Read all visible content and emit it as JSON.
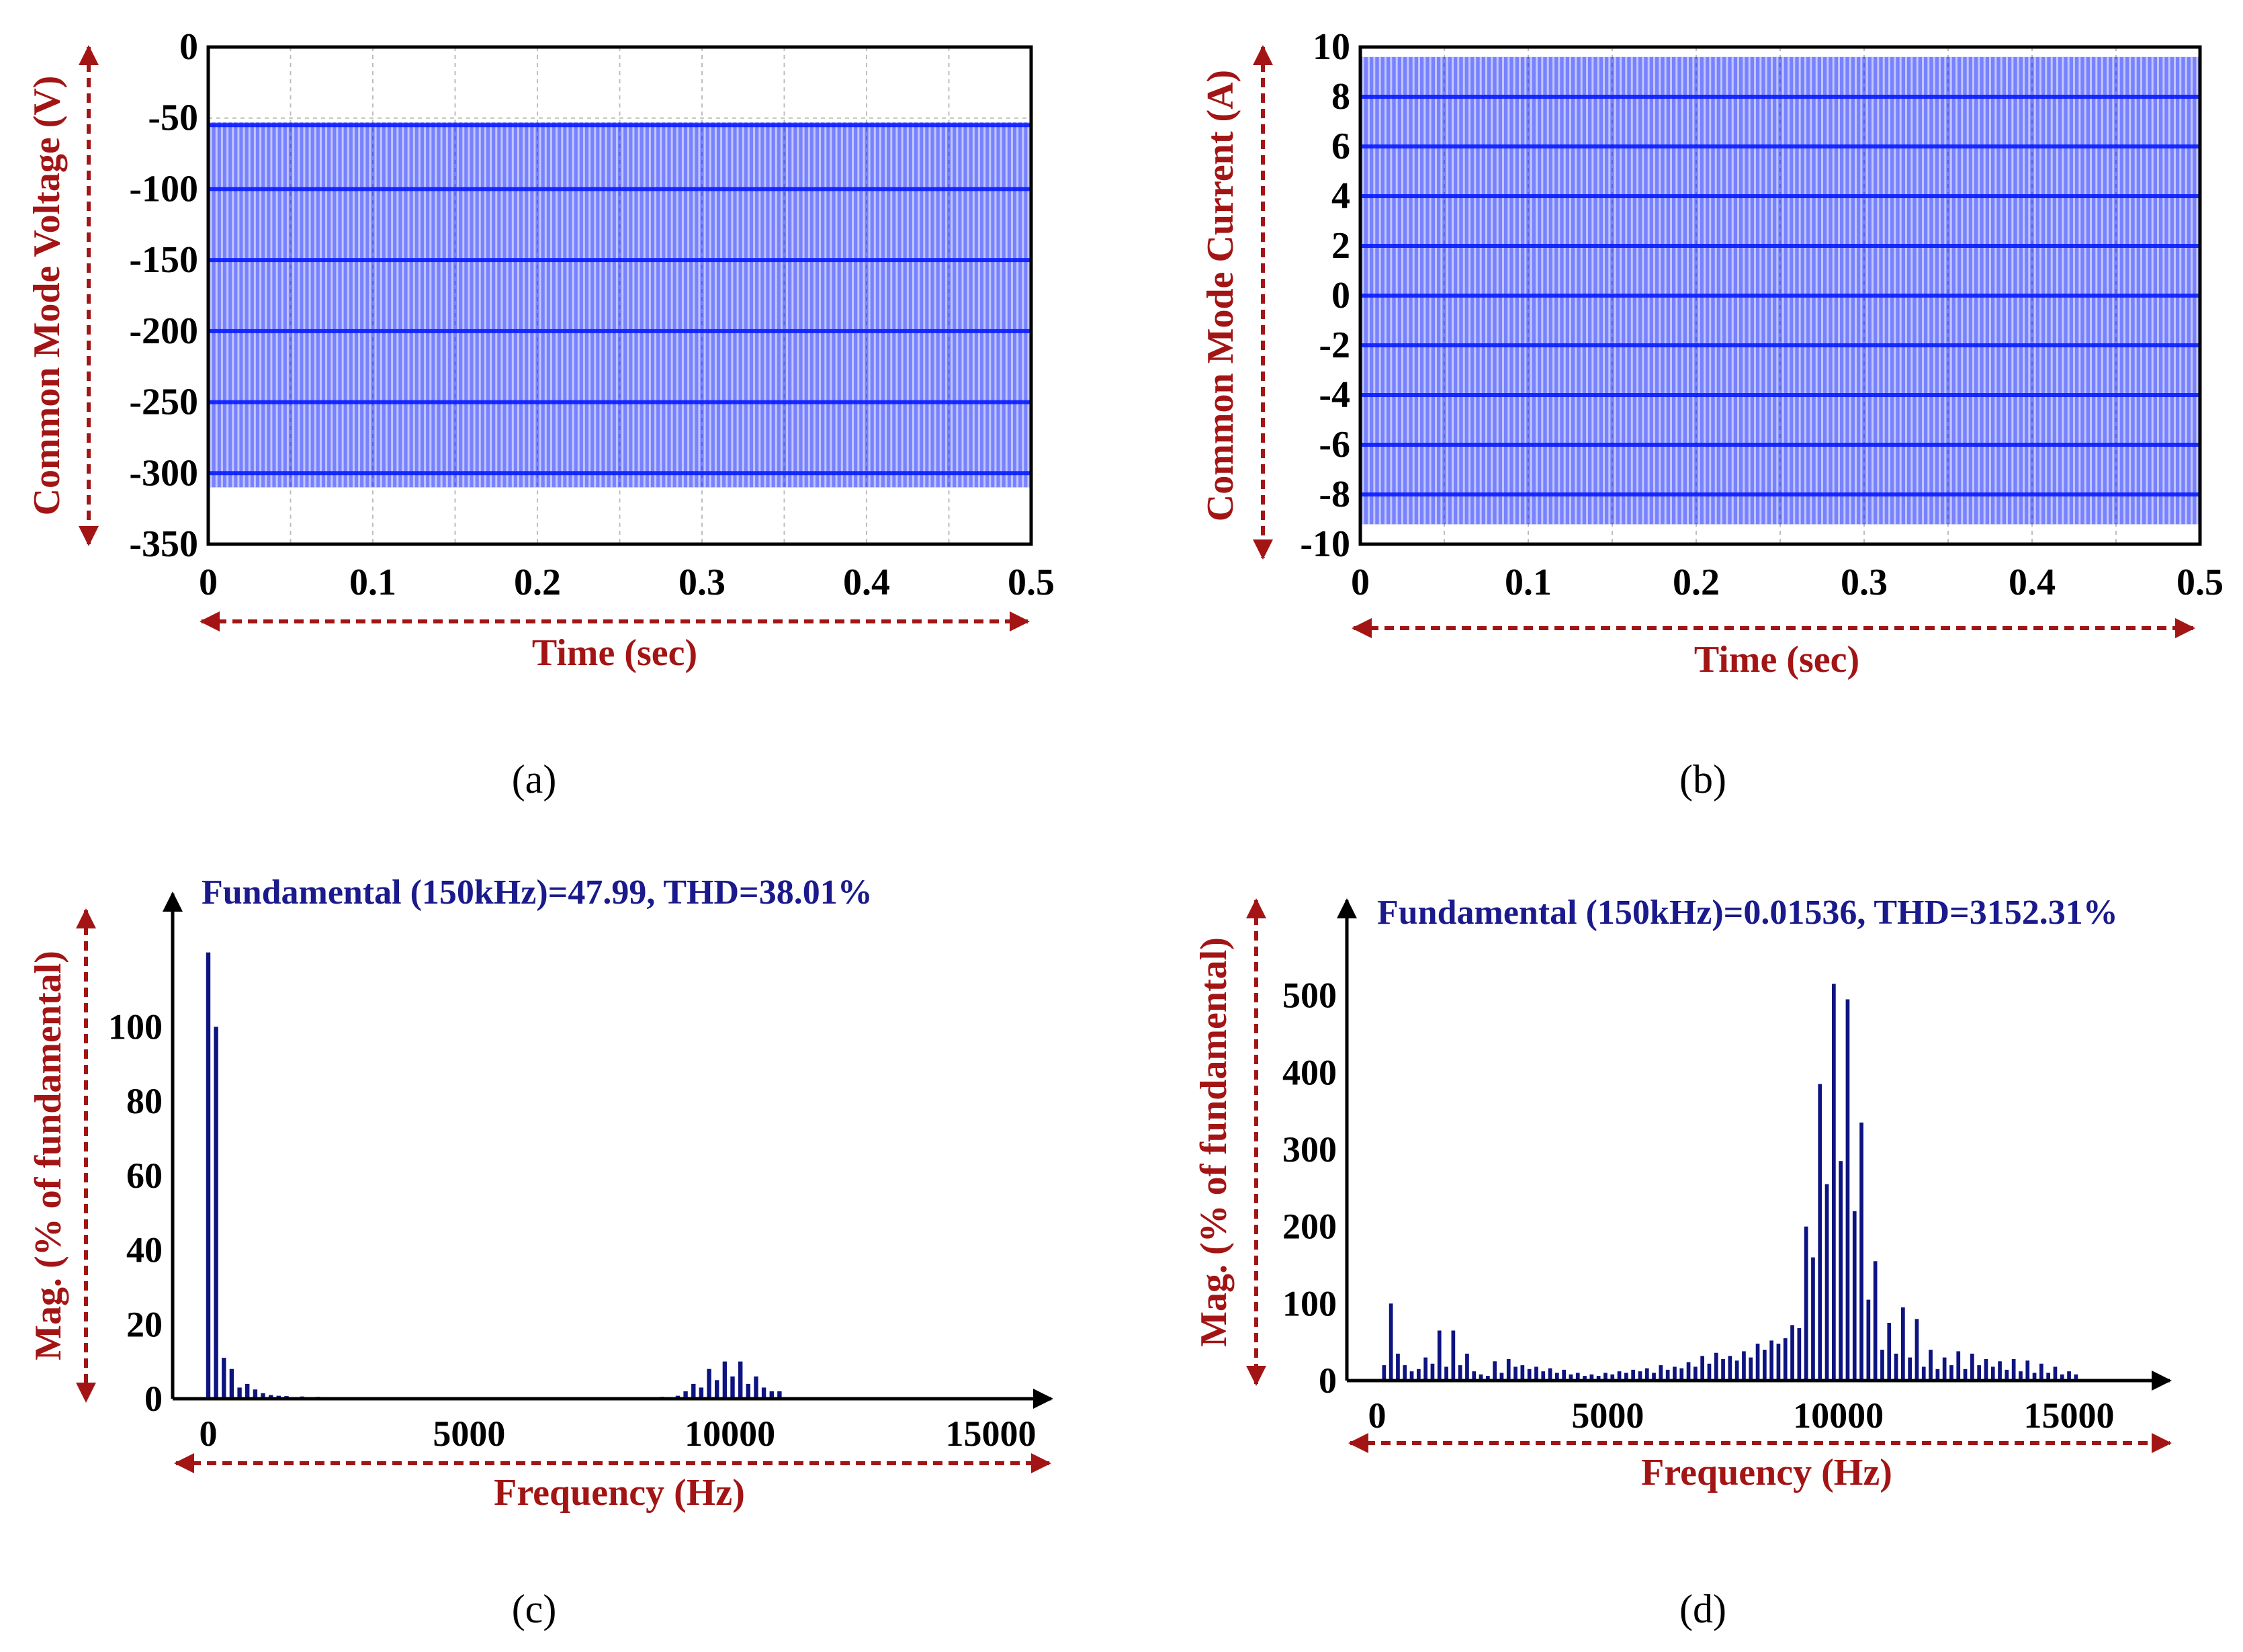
{
  "colors": {
    "waveform": "#0a1cff",
    "bar": "#0d1380",
    "axis_label": "#a31515",
    "title": "#1a1a8c",
    "arrow": "#a31515",
    "grid": "#bdbdbd"
  },
  "chart_data": [
    {
      "id": "a",
      "type": "line",
      "caption": "(a)",
      "title": "",
      "xlabel": "Time (sec)",
      "ylabel": "Common Mode Voltage (V)",
      "xlim": [
        0,
        0.5
      ],
      "ylim": [
        -350,
        0
      ],
      "xticks": [
        0,
        0.1,
        0.2,
        0.3,
        0.4,
        0.5
      ],
      "xtick_labels": [
        "0",
        "0.1",
        "0.2",
        "0.3",
        "0.4",
        "0.5"
      ],
      "yticks": [
        0,
        -50,
        -100,
        -150,
        -200,
        -250,
        -300,
        -350
      ],
      "ytick_labels": [
        "0",
        "-50",
        "-100",
        "-150",
        "-200",
        "-250",
        "-300",
        "-350"
      ],
      "grid": true,
      "signal": {
        "cycles": 75,
        "max": -53,
        "min": -310,
        "bands": [
          -55,
          -100,
          -150,
          -200,
          -250,
          -300
        ]
      }
    },
    {
      "id": "b",
      "type": "line",
      "caption": "(b)",
      "title": "",
      "xlabel": "Time (sec)",
      "ylabel": "Common Mode Current (A)",
      "xlim": [
        0,
        0.5
      ],
      "ylim": [
        -10,
        10
      ],
      "xticks": [
        0,
        0.1,
        0.2,
        0.3,
        0.4,
        0.5
      ],
      "xtick_labels": [
        "0",
        "0.1",
        "0.2",
        "0.3",
        "0.4",
        "0.5"
      ],
      "yticks": [
        10,
        8,
        6,
        4,
        2,
        0,
        -2,
        -4,
        -6,
        -8,
        -10
      ],
      "ytick_labels": [
        "10",
        "8",
        "6",
        "4",
        "2",
        "0",
        "-2",
        "-4",
        "-6",
        "-8",
        "-10"
      ],
      "grid": true,
      "signal": {
        "cycles": 75,
        "max": 9.6,
        "min": -9.2,
        "bands": [
          8,
          6,
          4,
          2,
          0,
          -2,
          -4,
          -6,
          -8
        ]
      }
    },
    {
      "id": "c",
      "type": "bar",
      "caption": "(c)",
      "title": "Fundamental (150kHz)=47.99, THD=38.01%",
      "xlabel": "Frequency (Hz)",
      "ylabel": "Mag. (% of fundamental)",
      "xlim": [
        -500,
        17000
      ],
      "ylim": [
        0,
        125
      ],
      "xticks": [
        0,
        5000,
        10000,
        15000
      ],
      "xtick_labels": [
        "0",
        "5000",
        "10000",
        "15000"
      ],
      "yticks": [
        0,
        20,
        40,
        60,
        80,
        100
      ],
      "ytick_labels": [
        "0",
        "20",
        "40",
        "60",
        "80",
        "100"
      ],
      "grid": false,
      "x": [
        0,
        150,
        300,
        450,
        600,
        750,
        900,
        1050,
        1200,
        1350,
        1500,
        1800,
        2100,
        2400,
        3000,
        3600,
        4200,
        4800,
        6000,
        7200,
        7500,
        8100,
        8400,
        8700,
        9000,
        9150,
        9300,
        9450,
        9600,
        9750,
        9900,
        10050,
        10200,
        10350,
        10500,
        10650,
        10800,
        10950,
        12000,
        13200
      ],
      "values": [
        120,
        100,
        11,
        8,
        3,
        4,
        2.5,
        1.5,
        1,
        0.8,
        0.7,
        0.6,
        0.5,
        0.4,
        0.4,
        0.4,
        0.3,
        0.3,
        0.3,
        0.4,
        0.3,
        0.3,
        0.4,
        0.5,
        0.8,
        2,
        4,
        3,
        8,
        5,
        10,
        6,
        10,
        4,
        6,
        3,
        2,
        2,
        0.4,
        0.3
      ]
    },
    {
      "id": "d",
      "type": "bar",
      "caption": "(d)",
      "title": "Fundamental (150kHz)=0.01536, THD=3152.31%",
      "xlabel": "Frequency (Hz)",
      "ylabel": "Mag. (% of fundamental)",
      "xlim": [
        -500,
        17000
      ],
      "ylim": [
        0,
        580
      ],
      "xticks": [
        0,
        5000,
        10000,
        15000
      ],
      "xtick_labels": [
        "0",
        "5000",
        "10000",
        "15000"
      ],
      "yticks": [
        0,
        100,
        200,
        300,
        400,
        500
      ],
      "ytick_labels": [
        "0",
        "100",
        "200",
        "300",
        "400",
        "500"
      ],
      "grid": false,
      "x": [
        150,
        300,
        450,
        600,
        750,
        900,
        1050,
        1200,
        1350,
        1500,
        1650,
        1800,
        1950,
        2100,
        2250,
        2400,
        2550,
        2700,
        2850,
        3000,
        3150,
        3300,
        3450,
        3600,
        3750,
        3900,
        4050,
        4200,
        4350,
        4500,
        4650,
        4800,
        4950,
        5100,
        5250,
        5400,
        5550,
        5700,
        5850,
        6000,
        6150,
        6300,
        6450,
        6600,
        6750,
        6900,
        7050,
        7200,
        7350,
        7500,
        7650,
        7800,
        7950,
        8100,
        8250,
        8400,
        8550,
        8700,
        8850,
        9000,
        9150,
        9300,
        9450,
        9600,
        9750,
        9900,
        10050,
        10200,
        10350,
        10500,
        10650,
        10800,
        10950,
        11100,
        11250,
        11400,
        11550,
        11700,
        11850,
        12000,
        12150,
        12300,
        12450,
        12600,
        12750,
        12900,
        13050,
        13200,
        13350,
        13500,
        13650,
        13800,
        13950,
        14100,
        14250,
        14400,
        14550,
        14700,
        14850,
        15000,
        15150
      ],
      "values": [
        20,
        100,
        35,
        20,
        12,
        15,
        30,
        22,
        65,
        18,
        65,
        20,
        35,
        12,
        8,
        6,
        25,
        10,
        28,
        18,
        20,
        15,
        18,
        12,
        16,
        10,
        14,
        8,
        10,
        6,
        8,
        6,
        10,
        8,
        12,
        10,
        14,
        12,
        16,
        10,
        20,
        14,
        18,
        16,
        24,
        18,
        32,
        22,
        36,
        28,
        32,
        26,
        38,
        30,
        48,
        40,
        52,
        48,
        55,
        72,
        68,
        200,
        160,
        385,
        255,
        515,
        285,
        495,
        220,
        335,
        105,
        155,
        40,
        75,
        35,
        95,
        30,
        80,
        18,
        40,
        15,
        30,
        20,
        38,
        15,
        35,
        20,
        28,
        18,
        25,
        14,
        28,
        12,
        26,
        10,
        22,
        10,
        18,
        8,
        12,
        8
      ]
    }
  ]
}
